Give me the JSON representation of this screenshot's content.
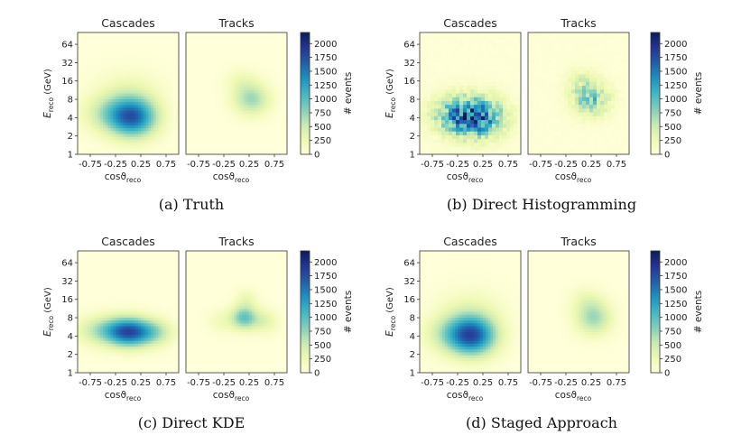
{
  "colormap": [
    "#ffffd9",
    "#edf8b1",
    "#c7e9b4",
    "#7fcdbb",
    "#41b6c4",
    "#1d91c0",
    "#225ea8",
    "#253494",
    "#081d58"
  ],
  "chart_data": {
    "type": "heatmap",
    "panel_titles": [
      "Cascades",
      "Tracks"
    ],
    "xlabel": "cosϑ",
    "xlabel_sub": "reco",
    "ylabel": "E",
    "ylabel_sub": "reco",
    "ylabel_unit": " (GeV)",
    "colorbar_label": "# events",
    "x_range": [
      -1,
      1
    ],
    "x_ticks": [
      "-0.75",
      "-0.25",
      "0.25",
      "0.75"
    ],
    "x_tick_values": [
      -0.75,
      -0.25,
      0.25,
      0.75
    ],
    "y_scale": "log2",
    "y_range": [
      1,
      100
    ],
    "y_ticks": [
      "1",
      "2",
      "4",
      "8",
      "16",
      "32",
      "64"
    ],
    "y_tick_values": [
      1,
      2,
      4,
      8,
      16,
      32,
      64
    ],
    "c_range": [
      0,
      2200
    ],
    "c_ticks": [
      "0",
      "250",
      "500",
      "750",
      "1000",
      "1250",
      "1500",
      "1750",
      "2000"
    ],
    "c_tick_values": [
      0,
      250,
      500,
      750,
      1000,
      1250,
      1500,
      1750,
      2000
    ],
    "approximation": "smooth density blobs; peak in events per bin, centre in cos and log2(E)",
    "subplots": [
      {
        "caption": "(a) Truth",
        "style": "smooth",
        "cascades": [
          {
            "x": 0.1,
            "log2E": 2.0,
            "sx": 0.33,
            "sy": 0.75,
            "peak": 1500
          },
          {
            "x": -0.4,
            "log2E": 2.2,
            "sx": 0.35,
            "sy": 0.7,
            "peak": 450
          },
          {
            "x": 0.0,
            "log2E": 3.3,
            "sx": 0.45,
            "sy": 0.9,
            "peak": 250
          }
        ],
        "tracks": [
          {
            "x": 0.3,
            "log2E": 3.0,
            "sx": 0.25,
            "sy": 0.6,
            "peak": 700
          },
          {
            "x": 0.1,
            "log2E": 4.0,
            "sx": 0.22,
            "sy": 0.5,
            "peak": 200
          }
        ]
      },
      {
        "caption": "(b) Direct Histogramming",
        "style": "noisy",
        "cascades": [
          {
            "x": 0.1,
            "log2E": 2.0,
            "sx": 0.38,
            "sy": 0.75,
            "peak": 1500
          },
          {
            "x": -0.35,
            "log2E": 2.2,
            "sx": 0.35,
            "sy": 0.7,
            "peak": 500
          }
        ],
        "tracks": [
          {
            "x": 0.25,
            "log2E": 3.0,
            "sx": 0.25,
            "sy": 0.6,
            "peak": 850
          },
          {
            "x": 0.05,
            "log2E": 4.0,
            "sx": 0.22,
            "sy": 0.5,
            "peak": 250
          }
        ]
      },
      {
        "caption": "(c) Direct KDE",
        "style": "smooth",
        "cascades": [
          {
            "x": 0.05,
            "log2E": 2.2,
            "sx": 0.3,
            "sy": 0.55,
            "peak": 1400
          },
          {
            "x": -0.4,
            "log2E": 2.3,
            "sx": 0.4,
            "sy": 0.55,
            "peak": 700
          },
          {
            "x": 0.55,
            "log2E": 2.2,
            "sx": 0.25,
            "sy": 0.5,
            "peak": 500
          }
        ],
        "tracks": [
          {
            "x": 0.15,
            "log2E": 3.0,
            "sx": 0.18,
            "sy": 0.45,
            "peak": 900
          },
          {
            "x": 0.55,
            "log2E": 2.8,
            "sx": 0.2,
            "sy": 0.45,
            "peak": 350
          },
          {
            "x": -0.3,
            "log2E": 2.8,
            "sx": 0.2,
            "sy": 0.45,
            "peak": 200
          },
          {
            "x": 0.2,
            "log2E": 4.0,
            "sx": 0.15,
            "sy": 0.4,
            "peak": 250
          }
        ]
      },
      {
        "caption": "(d) Staged Approach",
        "style": "smooth",
        "cascades": [
          {
            "x": 0.05,
            "log2E": 2.0,
            "sx": 0.33,
            "sy": 0.75,
            "peak": 1550
          },
          {
            "x": -0.4,
            "log2E": 2.1,
            "sx": 0.35,
            "sy": 0.7,
            "peak": 450
          },
          {
            "x": 0.0,
            "log2E": 3.3,
            "sx": 0.45,
            "sy": 0.9,
            "peak": 250
          }
        ],
        "tracks": [
          {
            "x": 0.3,
            "log2E": 3.0,
            "sx": 0.25,
            "sy": 0.65,
            "peak": 700
          },
          {
            "x": 0.15,
            "log2E": 4.0,
            "sx": 0.22,
            "sy": 0.5,
            "peak": 200
          }
        ]
      }
    ]
  }
}
